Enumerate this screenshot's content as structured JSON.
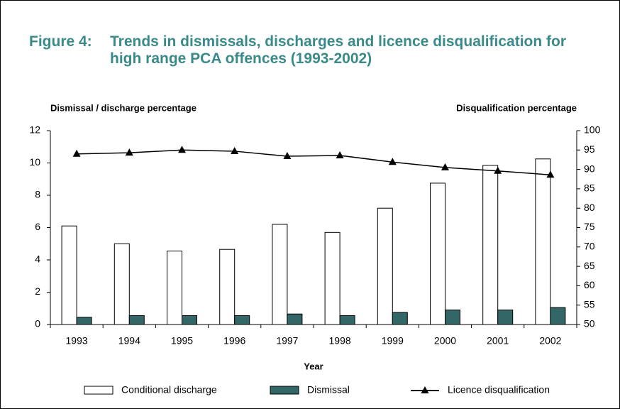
{
  "chart_data": {
    "type": "bar_line",
    "figure_label": "Figure 4:",
    "title": "Trends in dismissals, discharges and licence disqualification for high range PCA offences (1993-2002)",
    "y_label": "Dismissal / discharge percentage",
    "y2_label": "Disqualification percentage",
    "x_label": "Year",
    "categories": [
      "1993",
      "1994",
      "1995",
      "1996",
      "1997",
      "1998",
      "1999",
      "2000",
      "2001",
      "2002"
    ],
    "series": [
      {
        "name": "Conditional discharge",
        "type": "bar",
        "color": "#ffffff",
        "values": [
          6.1,
          5.0,
          4.55,
          4.65,
          6.2,
          5.7,
          7.2,
          8.75,
          9.85,
          10.25
        ]
      },
      {
        "name": "Dismissal",
        "type": "bar",
        "color": "#336666",
        "values": [
          0.45,
          0.55,
          0.55,
          0.55,
          0.65,
          0.55,
          0.75,
          0.9,
          0.9,
          1.05
        ]
      },
      {
        "name": "Licence disqualification",
        "type": "line",
        "axis": "y2",
        "color": "#000000",
        "values": [
          94.0,
          94.3,
          95.0,
          94.7,
          93.4,
          93.6,
          91.9,
          90.5,
          89.6,
          88.6
        ]
      }
    ],
    "ylim": [
      0,
      12
    ],
    "yticks": [
      0,
      2,
      4,
      6,
      8,
      10,
      12
    ],
    "y2lim": [
      50,
      100
    ],
    "y2ticks": [
      50,
      55,
      60,
      65,
      70,
      75,
      80,
      85,
      90,
      95,
      100
    ],
    "grid": false,
    "legend": "bottom"
  }
}
